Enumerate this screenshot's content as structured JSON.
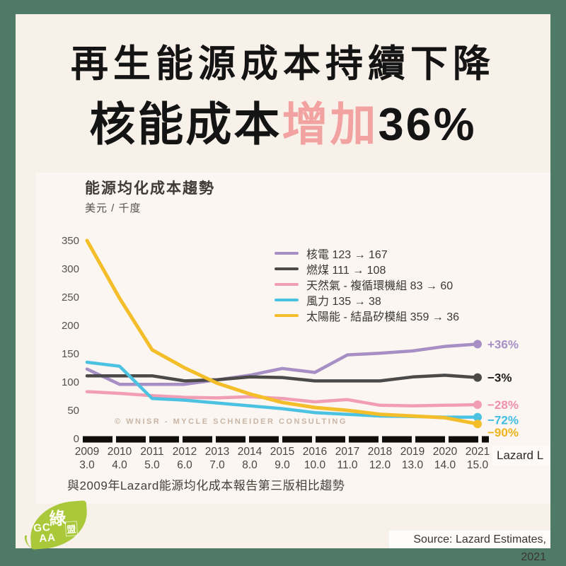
{
  "header": {
    "line1": "再生能源成本持續下降",
    "line2_pre": "核能成本",
    "line2_highlight": "增加",
    "line2_post": "36%",
    "highlight_color": "#f2a3a1"
  },
  "chart_data": {
    "type": "line",
    "title": "能源均化成本趨勢",
    "unit_label": "美元 / 千度",
    "x_years": [
      "2009",
      "2010",
      "2011",
      "2012",
      "2013",
      "2014",
      "2015",
      "2016",
      "2017",
      "2018",
      "2019",
      "2020",
      "2021"
    ],
    "x_versions": [
      "3.0",
      "4.0",
      "5.0",
      "6.0",
      "7.0",
      "8.0",
      "9.0",
      "10.0",
      "11.0",
      "12.0",
      "13.0",
      "14.0",
      "15.0"
    ],
    "yticks": [
      0,
      50,
      100,
      150,
      200,
      250,
      300,
      350
    ],
    "ylim": [
      0,
      350
    ],
    "grid": false,
    "legend_position": "upper right",
    "series": [
      {
        "key": "nuclear",
        "name": "核電 123 → 167",
        "color": "#a78fc6",
        "label_color": "#a78fc6",
        "end_label": "+36%",
        "start": 123,
        "end": 167,
        "values": [
          123,
          96,
          96,
          96,
          104,
          112,
          124,
          117,
          148,
          151,
          155,
          163,
          167
        ]
      },
      {
        "key": "coal",
        "name": "燃煤 111 → 108",
        "color": "#4b4a49",
        "label_color": "#1d1d1d",
        "end_label": "−3%",
        "start": 111,
        "end": 108,
        "values": [
          111,
          111,
          111,
          102,
          104,
          109,
          108,
          102,
          102,
          102,
          109,
          112,
          108
        ]
      },
      {
        "key": "gas-combined-cycle",
        "name": "天然氣 - 複循環機組 83 → 60",
        "color": "#f19db3",
        "label_color": "#ef8fae",
        "end_label": "−28%",
        "start": 83,
        "end": 60,
        "values": [
          83,
          80,
          76,
          73,
          72,
          74,
          71,
          65,
          69,
          59,
          58,
          59,
          60
        ]
      },
      {
        "key": "wind",
        "name": "風力 135 → 38",
        "color": "#4cc2e2",
        "label_color": "#3ebde2",
        "end_label": "−72%",
        "start": 135,
        "end": 38,
        "values": [
          135,
          128,
          71,
          68,
          63,
          58,
          53,
          46,
          43,
          40,
          39,
          38,
          38
        ]
      },
      {
        "key": "solar-crystalline",
        "name": "太陽能 - 結晶矽模組 359 → 36",
        "color": "#f4bd2a",
        "label_color": "#eeb31c",
        "end_label": "−90%",
        "start": 359,
        "end": 36,
        "values": [
          359,
          248,
          157,
          125,
          98,
          79,
          64,
          55,
          50,
          43,
          40,
          37,
          36
        ]
      }
    ],
    "annotations": {
      "watermark": "© WNISR - MYCLE SCHNEIDER CONSULTING",
      "axis_note": "Lazard L",
      "footnote": "與2009年Lazard能源均化成本報告第三版相比趨勢"
    }
  },
  "footer": {
    "source": "Source: Lazard Estimates, 2021",
    "logo": {
      "char_top": "綠",
      "char_side": "盟",
      "letters_top": "GC",
      "letters_bottom": "AA"
    }
  }
}
